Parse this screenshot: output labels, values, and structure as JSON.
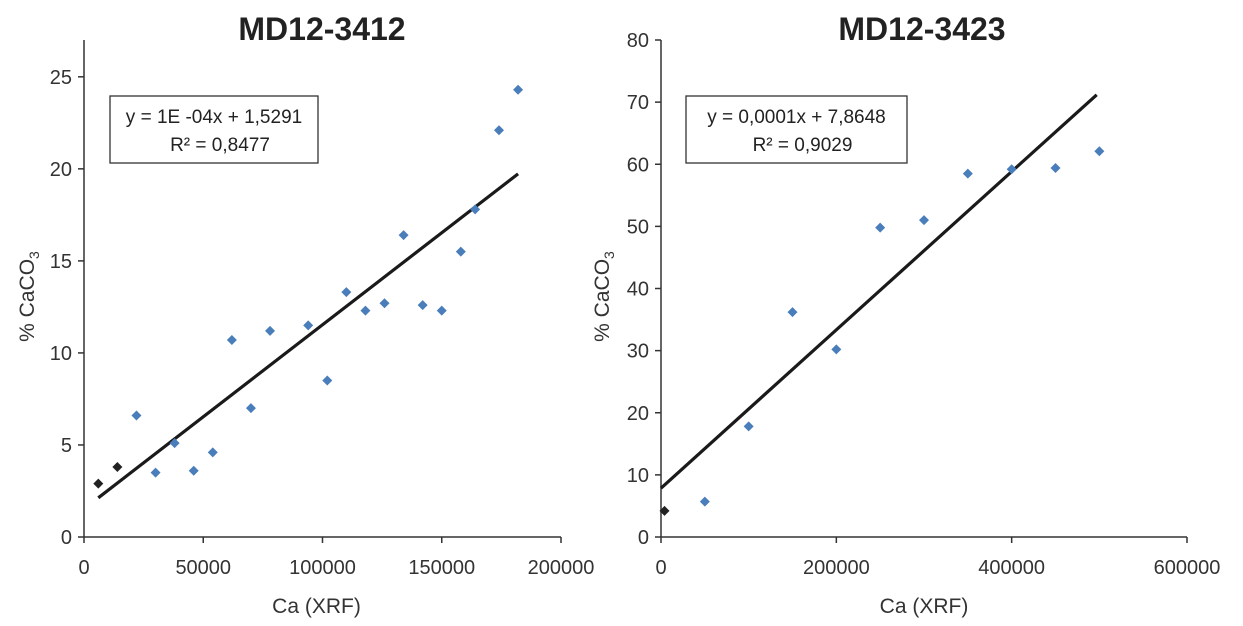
{
  "chart_data": [
    {
      "type": "scatter",
      "title": "MD12-3412",
      "xlabel": "Ca (XRF)",
      "ylabel": "% CaCO",
      "ylabel_sub": "3",
      "xlim": [
        0,
        200000
      ],
      "ylim": [
        0,
        27
      ],
      "x_ticks": [
        0,
        50000,
        100000,
        150000,
        200000
      ],
      "y_ticks": [
        0,
        5,
        10,
        15,
        20,
        25
      ],
      "grid": false,
      "equation": "y = 1E -04x + 1,5291",
      "r2": "R² = 0,8477",
      "trendline": {
        "slope": 0.0001,
        "intercept": 1.5291,
        "x_range": [
          6000,
          182000
        ]
      },
      "series": [
        {
          "color": "#4a7ebb",
          "marker": "diamond",
          "points": [
            [
              22000,
              6.6
            ],
            [
              30000,
              3.5
            ],
            [
              38000,
              5.1
            ],
            [
              46000,
              3.6
            ],
            [
              54000,
              4.6
            ],
            [
              62000,
              10.7
            ],
            [
              70000,
              7.0
            ],
            [
              78000,
              11.2
            ],
            [
              94000,
              11.5
            ],
            [
              102000,
              8.5
            ],
            [
              110000,
              13.3
            ],
            [
              118000,
              12.3
            ],
            [
              126000,
              12.7
            ],
            [
              134000,
              16.4
            ],
            [
              142000,
              12.6
            ],
            [
              150000,
              12.3
            ],
            [
              158000,
              15.5
            ],
            [
              164000,
              17.8
            ],
            [
              174000,
              22.1
            ],
            [
              182000,
              24.3
            ]
          ]
        },
        {
          "color": "#222222",
          "marker": "diamond",
          "points": [
            [
              6000,
              2.9
            ],
            [
              14000,
              3.8
            ]
          ]
        }
      ]
    },
    {
      "type": "scatter",
      "title": "MD12-3423",
      "xlabel": "Ca (XRF)",
      "ylabel": "% CaCO",
      "ylabel_sub": "3",
      "xlim": [
        0,
        600000
      ],
      "ylim": [
        0,
        80
      ],
      "x_ticks": [
        0,
        200000,
        400000,
        600000
      ],
      "y_ticks": [
        0,
        10,
        20,
        30,
        40,
        50,
        60,
        70,
        80
      ],
      "grid": false,
      "equation": "y = 0,0001x + 7,8648",
      "r2": "R² = 0,9029",
      "trendline": {
        "slope": 0.0001274,
        "intercept": 7.8648,
        "x_range": [
          0,
          497000
        ]
      },
      "series": [
        {
          "color": "#4a7ebb",
          "marker": "diamond",
          "points": [
            [
              50000,
              5.7
            ],
            [
              100000,
              17.8
            ],
            [
              150000,
              36.2
            ],
            [
              200000,
              30.2
            ],
            [
              250000,
              49.8
            ],
            [
              300000,
              51.0
            ],
            [
              350000,
              58.5
            ],
            [
              400000,
              59.2
            ],
            [
              450000,
              59.4
            ],
            [
              500000,
              62.1
            ]
          ]
        },
        {
          "color": "#222222",
          "marker": "diamond",
          "points": [
            [
              4000,
              4.2
            ]
          ]
        }
      ]
    }
  ]
}
